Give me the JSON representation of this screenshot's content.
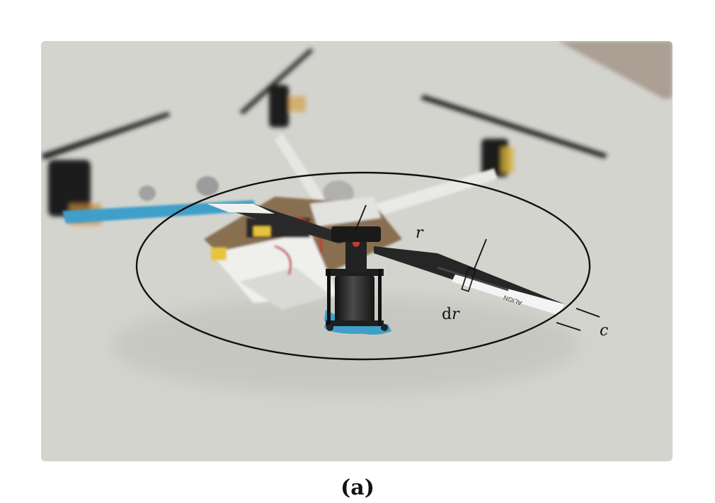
{
  "figure": {
    "caption": "(a)",
    "labels": {
      "radius": "r",
      "element_prefix": "d",
      "element_var": "r",
      "chord": "c"
    },
    "blade_brand": "ALIGN",
    "colors": {
      "frame_blue": "#3f9fc9",
      "motor_black": "#1e1e1e",
      "blade_white": "#f4f4f4",
      "floor": "#d3d3ce",
      "annotation": "#111111"
    }
  }
}
